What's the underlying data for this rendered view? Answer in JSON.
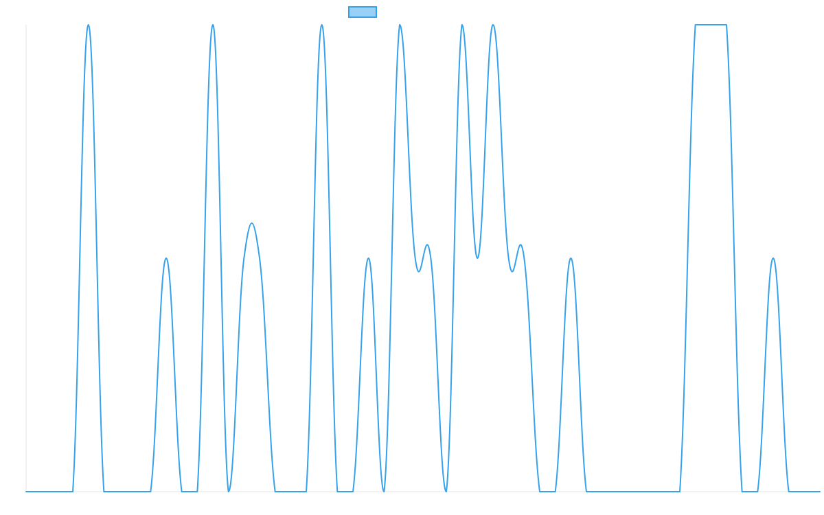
{
  "chart_data": {
    "type": "line",
    "title": "",
    "xlabel": "",
    "ylabel": "",
    "grid": false,
    "legend_placement": "top-center",
    "ylim": [
      0,
      1
    ],
    "x": [
      0,
      1,
      2,
      3,
      4,
      5,
      6,
      7,
      8,
      9,
      10,
      11,
      12,
      13,
      14,
      15,
      16,
      17,
      18,
      19,
      20,
      21,
      22,
      23,
      24,
      25,
      26,
      27,
      28,
      29,
      30,
      31,
      32,
      33,
      34,
      35,
      36,
      37,
      38,
      39,
      40,
      41,
      42,
      43,
      44,
      45,
      46,
      47,
      48,
      49,
      50,
      51
    ],
    "series": [
      {
        "name": "",
        "color": "#36a2eb",
        "fill": "#9ad0f5",
        "values": [
          0,
          0,
          0,
          0,
          1,
          0,
          0,
          0,
          0,
          0.5,
          0,
          0,
          1,
          0,
          0.5,
          0.5,
          0,
          0,
          0,
          1,
          0,
          0,
          0.5,
          0,
          1,
          0.5,
          0.5,
          0,
          1,
          0.5,
          1,
          0.5,
          0.5,
          0,
          0,
          0.5,
          0,
          0,
          0,
          0,
          0,
          0,
          0,
          1,
          1,
          1,
          0,
          0,
          0.5,
          0,
          0,
          0
        ]
      }
    ]
  }
}
